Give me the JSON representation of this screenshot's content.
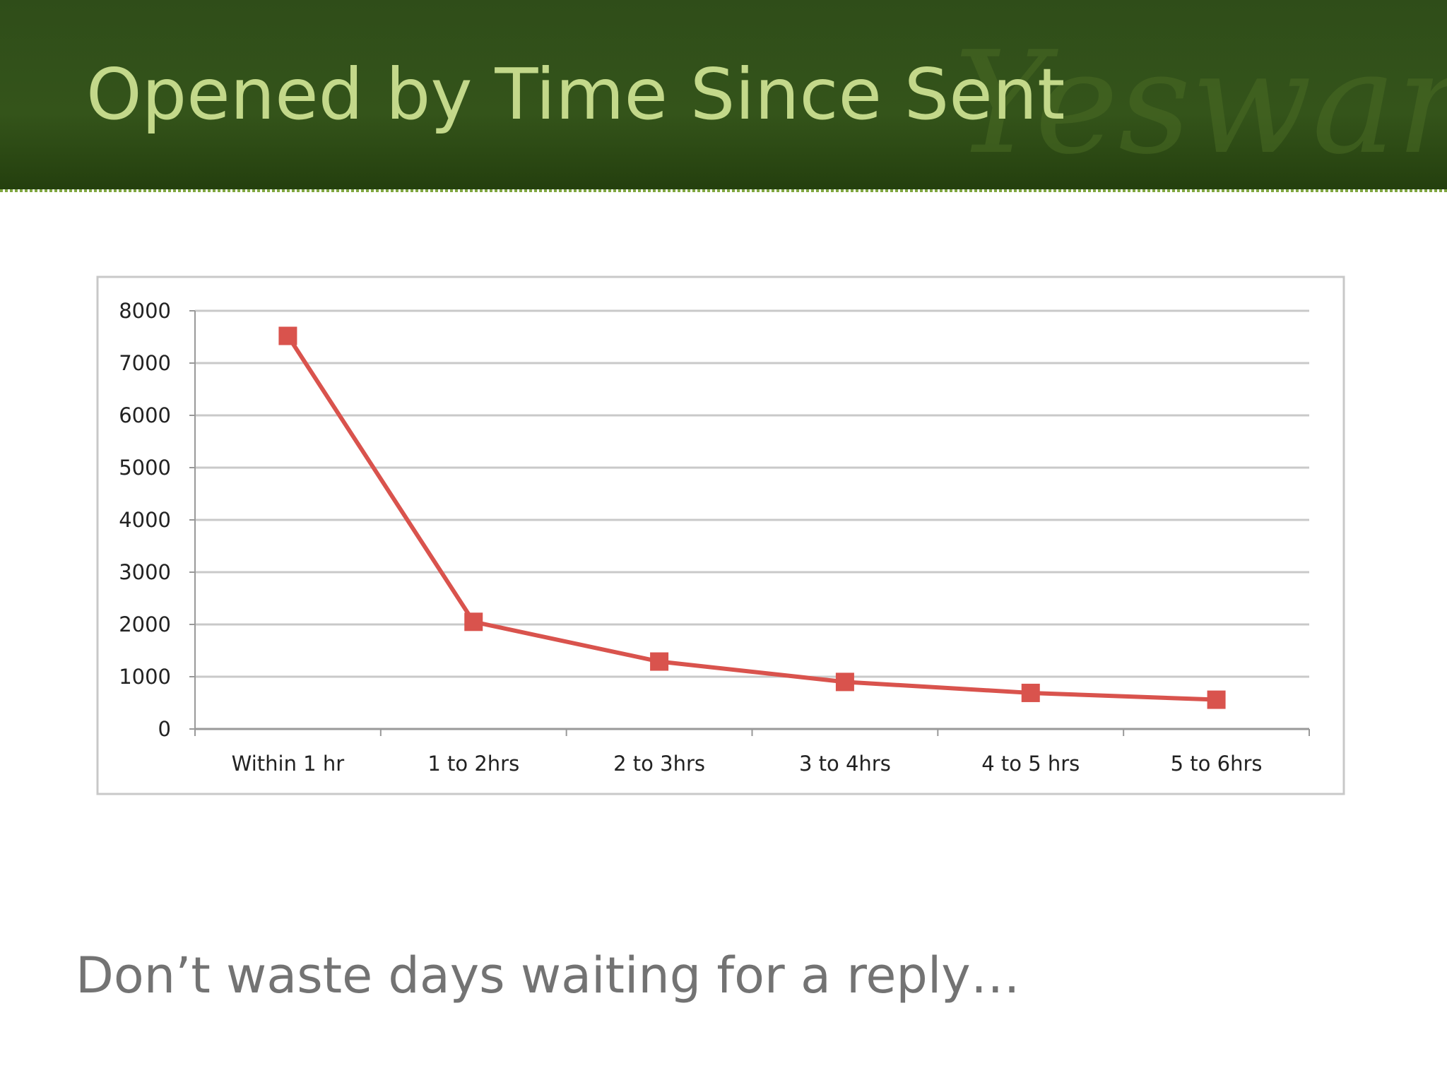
{
  "chart_data": {
    "type": "line",
    "title": "Opened by Time Since Sent",
    "watermark": "Yesware",
    "note": "Don’t waste days waiting for a reply…",
    "categories": [
      "Within 1 hr",
      "1 to 2hrs",
      "2 to 3hrs",
      "3 to 4hrs",
      "4 to 5 hrs",
      "5 to 6hrs"
    ],
    "series": [
      {
        "color": "#d9534d",
        "values": [
          7520,
          2050,
          1290,
          900,
          690,
          560
        ]
      }
    ],
    "ylim": [
      0,
      8000
    ],
    "yticks": [
      0,
      1000,
      2000,
      3000,
      4000,
      5000,
      6000,
      7000,
      8000
    ],
    "grid": true
  }
}
